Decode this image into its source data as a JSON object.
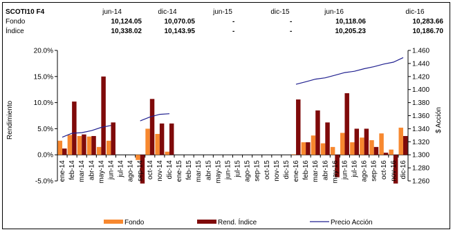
{
  "header": {
    "code": "SCOTI10 F4",
    "dates": [
      "jun-14",
      "dic-14",
      "jun-15",
      "dic-15",
      "jun-16",
      "dic-16"
    ],
    "rows": [
      {
        "label": "Fondo",
        "values": [
          "10,124.05",
          "10,070.05",
          "-",
          "-",
          "10,118.06",
          "10,283.66"
        ]
      },
      {
        "label": "Índice",
        "values": [
          "10,338.02",
          "10,143.95",
          "-",
          "-",
          "10,205.23",
          "10,186.70"
        ]
      }
    ]
  },
  "chart_data": {
    "type": "bar",
    "ylabel": "Rendimiento",
    "y2label": "$ Acción",
    "ylim": [
      -5,
      20
    ],
    "y2lim": [
      1.26,
      1.46
    ],
    "y_ticks": [
      "-5.0%",
      "0.0%",
      "5.0%",
      "10.0%",
      "15.0%",
      "20.0%"
    ],
    "y2_ticks": [
      "1.260",
      "1.280",
      "1.300",
      "1.320",
      "1.340",
      "1.360",
      "1.380",
      "1.400",
      "1.420",
      "1.440",
      "1.460"
    ],
    "categories": [
      "ene-14",
      "feb-14",
      "mar-14",
      "abr-14",
      "may-14",
      "jun-14",
      "jul-14",
      "ago-14",
      "sep-14",
      "oct-14",
      "nov-14",
      "dic-14",
      "ene-15",
      "feb-15",
      "mar-15",
      "abr-15",
      "may-15",
      "jun-15",
      "jul-15",
      "ago-15",
      "sep-15",
      "oct-15",
      "nov-15",
      "dic-15",
      "ene-16",
      "feb-16",
      "mar-16",
      "abr-16",
      "may-16",
      "jun-16",
      "jul-16",
      "ago-16",
      "sep-16",
      "oct-16",
      "nov-16",
      "dic-16"
    ],
    "series": [
      {
        "name": "Fondo",
        "color": "#F7882F",
        "values": [
          2.7,
          3.8,
          3.6,
          3.5,
          1.5,
          2.7,
          null,
          null,
          -1.0,
          5.0,
          4.0,
          0.6,
          null,
          null,
          null,
          null,
          null,
          null,
          null,
          null,
          null,
          null,
          null,
          null,
          0.1,
          2.4,
          3.7,
          2.2,
          1.5,
          4.2,
          2.4,
          3.3,
          2.8,
          4.1,
          1.0,
          5.2
        ]
      },
      {
        "name": "Rend. Índice",
        "color": "#7F0A0A",
        "values": [
          1.2,
          10.2,
          3.9,
          3.6,
          15.0,
          6.2,
          null,
          null,
          -5.5,
          10.7,
          6.0,
          6.0,
          null,
          null,
          null,
          null,
          null,
          null,
          null,
          null,
          null,
          null,
          null,
          null,
          10.6,
          2.4,
          8.5,
          6.2,
          -4.3,
          11.8,
          5.0,
          5.0,
          1.5,
          0.4,
          -5.5,
          3.6
        ]
      },
      {
        "name": "Precio Acción",
        "color": "#1F1F8F",
        "values": [
          1.327,
          1.333,
          1.334,
          1.337,
          1.342,
          1.345,
          null,
          null,
          1.352,
          1.358,
          1.362,
          1.363,
          null,
          null,
          null,
          null,
          null,
          null,
          null,
          null,
          null,
          null,
          null,
          null,
          1.408,
          1.412,
          1.416,
          1.418,
          1.422,
          1.426,
          1.428,
          1.432,
          1.435,
          1.439,
          1.442,
          1.449
        ]
      }
    ],
    "legend": [
      "Fondo",
      "Rend. Índice",
      "Precio Acción"
    ],
    "legend_position": "bottom",
    "grid": false
  }
}
